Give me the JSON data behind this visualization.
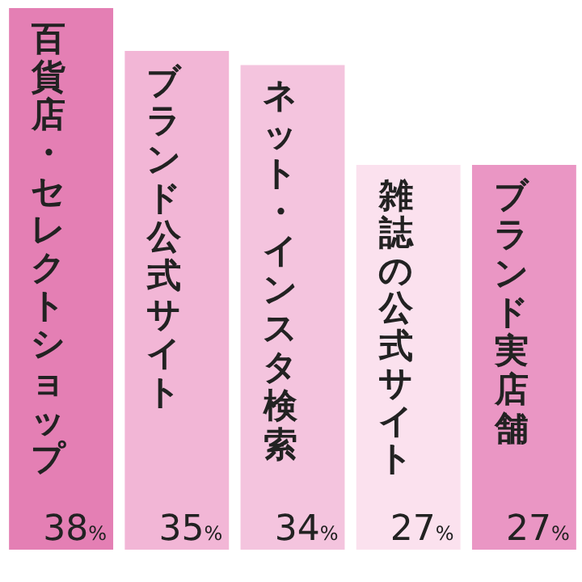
{
  "chart_data": {
    "type": "bar",
    "categories": [
      "百貨店・セレクトショップ",
      "ブランド公式サイト",
      "ネット・インスタ検索",
      "雑誌の公式サイト",
      "ブランド実店舗"
    ],
    "values": [
      38,
      35,
      34,
      27,
      27
    ],
    "colors": [
      "#e47fb4",
      "#f2b6d6",
      "#f4c4de",
      "#fbe1ee",
      "#ea96c4"
    ],
    "value_labels": [
      "38%",
      "35%",
      "34%",
      "27%",
      "27%"
    ],
    "legend": false
  }
}
